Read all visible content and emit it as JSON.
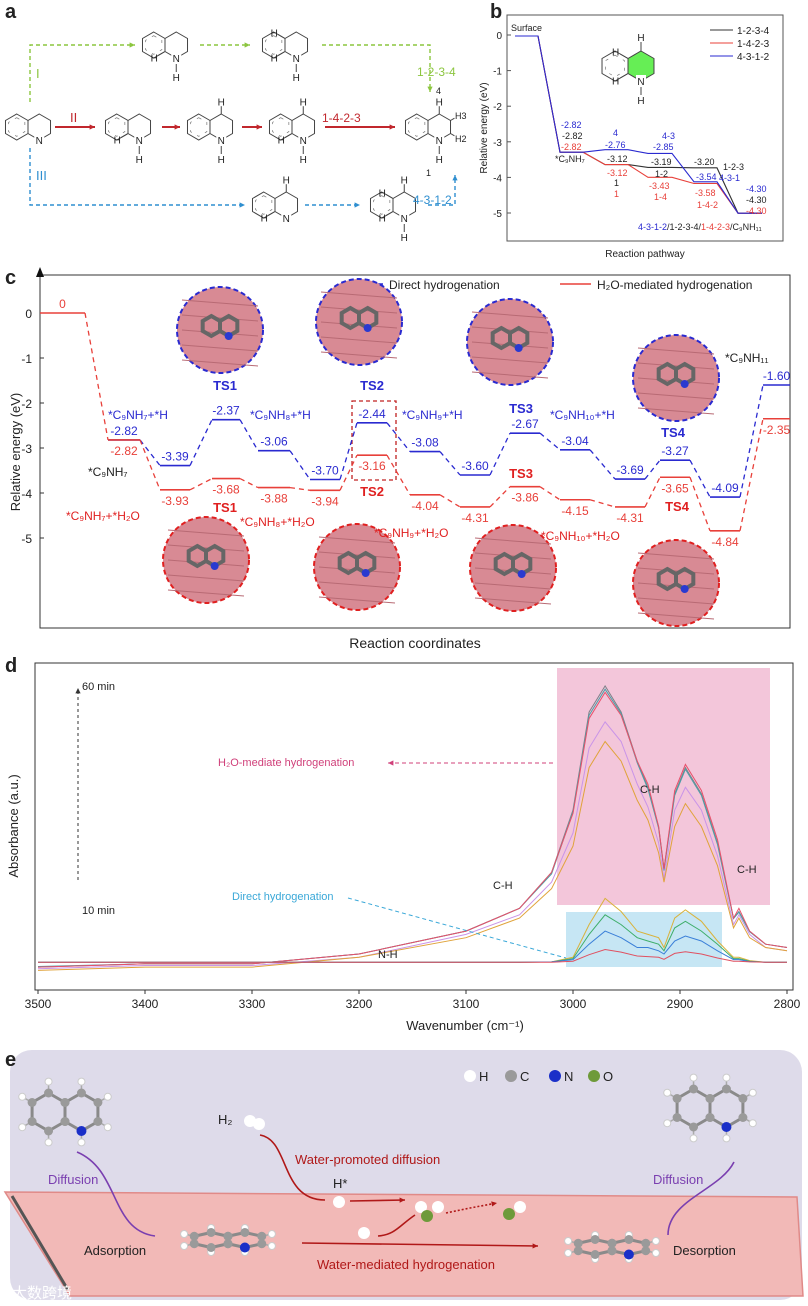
{
  "panels": {
    "a": "a",
    "b": "b",
    "c": "c",
    "d": "d",
    "e": "e"
  },
  "panel_a": {
    "route_labels": [
      {
        "text": "I",
        "color": "#8cc63f"
      },
      {
        "text": "II",
        "color": "#c1272d"
      },
      {
        "text": "III",
        "color": "#2f8fd0"
      }
    ],
    "sequence_labels": [
      {
        "text": "1-2-3-4",
        "color": "#8cc63f"
      },
      {
        "text": "1-4-2-3",
        "color": "#c1272d"
      },
      {
        "text": "4-3-1-2",
        "color": "#2f8fd0"
      }
    ],
    "atom_N": "N",
    "atom_H": "H",
    "product_labels": [
      "4",
      "H3",
      "H2",
      "1"
    ]
  },
  "chart_data": [
    {
      "type": "line",
      "panel": "b",
      "xlabel": "Reaction pathway",
      "ylabel": "Relative energy (eV)",
      "ylim": [
        -5,
        0.5
      ],
      "yticks": [
        "0",
        "-1",
        "-2",
        "-3",
        "-4",
        "-5"
      ],
      "legend_position": "top-right",
      "series": [
        {
          "name": "1-2-3-4",
          "color": "#333333",
          "values": [
            0,
            -2.82,
            -3.12,
            -3.19,
            -3.2,
            -4.3
          ]
        },
        {
          "name": "1-4-2-3",
          "color": "#e8403a",
          "values": [
            0,
            -2.82,
            -3.12,
            -3.43,
            -3.58,
            -4.3
          ]
        },
        {
          "name": "4-3-1-2",
          "color": "#2a2ad0",
          "values": [
            0,
            -2.82,
            -2.76,
            -2.85,
            -3.54,
            -4.3
          ]
        }
      ],
      "annotations": [
        {
          "text": "Surface",
          "color": "#222222"
        },
        {
          "text": "*C₉NH₇",
          "color": "#222222"
        },
        {
          "text": "-2.82",
          "color": "#2a2ad0"
        },
        {
          "text": "-2.82",
          "color": "#222222"
        },
        {
          "text": "-2.82",
          "color": "#e8403a"
        },
        {
          "text": "4",
          "color": "#2a2ad0"
        },
        {
          "text": "-2.76",
          "color": "#2a2ad0"
        },
        {
          "text": "4-3",
          "color": "#2a2ad0"
        },
        {
          "text": "-2.85",
          "color": "#2a2ad0"
        },
        {
          "text": "-3.12",
          "color": "#222222"
        },
        {
          "text": "-3.12",
          "color": "#e8403a"
        },
        {
          "text": "1",
          "color": "#222222"
        },
        {
          "text": "1",
          "color": "#e8403a"
        },
        {
          "text": "-3.19",
          "color": "#222222"
        },
        {
          "text": "1-2",
          "color": "#222222"
        },
        {
          "text": "-3.43",
          "color": "#e8403a"
        },
        {
          "text": "1-4",
          "color": "#e8403a"
        },
        {
          "text": "-3.20",
          "color": "#222222"
        },
        {
          "text": "1-2-3",
          "color": "#222222"
        },
        {
          "text": "-3.54",
          "color": "#2a2ad0"
        },
        {
          "text": "4-3-1",
          "color": "#2a2ad0"
        },
        {
          "text": "-3.58",
          "color": "#e8403a"
        },
        {
          "text": "1-4-2",
          "color": "#e8403a"
        },
        {
          "text": "-4.30",
          "color": "#2a2ad0"
        },
        {
          "text": "-4.30",
          "color": "#222222"
        },
        {
          "text": "-4.30",
          "color": "#e8403a"
        }
      ],
      "final_label": [
        {
          "text": "4-3-1-2",
          "color": "#2a2ad0"
        },
        {
          "text": "/1-2-3-4/",
          "color": "#222222"
        },
        {
          "text": "1-4-2-3",
          "color": "#e8403a"
        },
        {
          "text": "/C₉NH₁₁",
          "color": "#222222"
        }
      ],
      "structure_labels": [
        "4",
        "H",
        "H3",
        "H2",
        "N",
        "H",
        "1"
      ]
    },
    {
      "type": "line",
      "panel": "c",
      "xlabel": "Reaction coordinates",
      "ylabel": "Relative energy (eV)",
      "ylim": [
        -6.5,
        0.8
      ],
      "yticks": [
        "0",
        "-1",
        "-2",
        "-3",
        "-4",
        "-5"
      ],
      "legend_position": "top-right",
      "series": [
        {
          "name": "Direct hydrogenation",
          "color": "#2a2ad0",
          "values": [
            -2.82,
            -3.39,
            -2.37,
            -3.06,
            -3.7,
            -2.44,
            -3.08,
            -3.6,
            -2.67,
            -3.04,
            -3.69,
            -3.27,
            -4.09,
            -1.6
          ]
        },
        {
          "name": "H₂O-mediated hydrogenation",
          "color": "#e8403a",
          "values": [
            0,
            -2.82,
            -3.93,
            -3.68,
            -3.88,
            -3.94,
            -3.16,
            -4.04,
            -4.31,
            -3.86,
            -4.15,
            -4.31,
            -3.65,
            -4.84,
            -2.35
          ]
        }
      ],
      "value_labels_direct": [
        "-2.82",
        "-3.39",
        "-2.37",
        "-3.06",
        "-3.70",
        "-2.44",
        "-3.08",
        "-3.60",
        "-2.67",
        "-3.04",
        "-3.69",
        "-3.27",
        "-4.09",
        "-1.60"
      ],
      "value_labels_water": [
        "0",
        "-2.82",
        "-3.93",
        "-3.68",
        "-3.88",
        "-3.94",
        "-3.16",
        "-4.04",
        "-4.31",
        "-3.86",
        "-4.15",
        "-4.31",
        "-3.65",
        "-4.84",
        "-2.35"
      ],
      "ts_labels": [
        "TS1",
        "TS2",
        "TS3",
        "TS4"
      ],
      "states_direct": [
        "*C₉NH₇+*H",
        "*C₉NH₈+*H",
        "*C₉NH₉+*H",
        "*C₉NH₁₀+*H",
        "*C₉NH₁₁"
      ],
      "states_water": [
        "*C₉NH₇+*H₂O",
        "*C₉NH₈+*H₂O",
        "*C₉NH₉+*H₂O",
        "*C₉NH₁₀+*H₂O"
      ],
      "start_state": "*C₉NH₇"
    },
    {
      "type": "line",
      "panel": "d",
      "xlabel": "Wavenumber (cm⁻¹)",
      "ylabel": "Absorbance (a.u.)",
      "xlim": [
        3500,
        2800
      ],
      "xticks": [
        "3500",
        "3400",
        "3300",
        "3200",
        "3100",
        "3000",
        "2900",
        "2800"
      ],
      "x": [
        3500,
        3400,
        3300,
        3200,
        3100,
        3050,
        3020,
        3000,
        2985,
        2970,
        2955,
        2940,
        2930,
        2920,
        2915,
        2905,
        2895,
        2880,
        2865,
        2850,
        2845,
        2835,
        2820,
        2800
      ],
      "series": [
        {
          "group": "H2O-mediated",
          "color": "#7b7f86",
          "values": [
            0.07,
            0.08,
            0.08,
            0.11,
            0.18,
            0.25,
            0.36,
            0.55,
            0.85,
            0.93,
            0.85,
            0.7,
            0.62,
            0.5,
            0.37,
            0.6,
            0.68,
            0.6,
            0.45,
            0.22,
            0.24,
            0.18,
            0.14,
            0.13
          ]
        },
        {
          "group": "H2O-mediated",
          "color": "#4aa0a8",
          "values": [
            0.072,
            0.08,
            0.08,
            0.11,
            0.18,
            0.25,
            0.355,
            0.545,
            0.84,
            0.92,
            0.845,
            0.695,
            0.615,
            0.495,
            0.365,
            0.595,
            0.675,
            0.595,
            0.445,
            0.218,
            0.238,
            0.178,
            0.14,
            0.13
          ]
        },
        {
          "group": "H2O-mediated",
          "color": "#e8506a",
          "values": [
            0.07,
            0.08,
            0.08,
            0.11,
            0.18,
            0.25,
            0.36,
            0.54,
            0.83,
            0.91,
            0.84,
            0.7,
            0.63,
            0.5,
            0.37,
            0.61,
            0.69,
            0.61,
            0.46,
            0.22,
            0.25,
            0.18,
            0.14,
            0.13
          ]
        },
        {
          "group": "H2O-mediated",
          "color": "#c994e8",
          "values": [
            0.065,
            0.075,
            0.075,
            0.1,
            0.17,
            0.23,
            0.33,
            0.48,
            0.74,
            0.82,
            0.76,
            0.63,
            0.56,
            0.45,
            0.34,
            0.55,
            0.62,
            0.55,
            0.41,
            0.2,
            0.23,
            0.17,
            0.13,
            0.12
          ]
        },
        {
          "group": "H2O-mediated",
          "color": "#e0a33a",
          "values": [
            0.06,
            0.07,
            0.07,
            0.1,
            0.16,
            0.22,
            0.31,
            0.44,
            0.68,
            0.76,
            0.7,
            0.58,
            0.52,
            0.42,
            0.33,
            0.5,
            0.57,
            0.5,
            0.38,
            0.19,
            0.22,
            0.16,
            0.13,
            0.12
          ]
        },
        {
          "group": "Direct",
          "color": "#d9b23a",
          "values": [
            0.085,
            0.085,
            0.085,
            0.085,
            0.085,
            0.085,
            0.086,
            0.1,
            0.2,
            0.28,
            0.24,
            0.18,
            0.17,
            0.16,
            0.13,
            0.22,
            0.245,
            0.21,
            0.15,
            0.1,
            0.1,
            0.09,
            0.085,
            0.085
          ]
        },
        {
          "group": "Direct",
          "color": "#3fae6a",
          "values": [
            0.085,
            0.085,
            0.085,
            0.085,
            0.085,
            0.085,
            0.086,
            0.096,
            0.17,
            0.23,
            0.2,
            0.16,
            0.15,
            0.14,
            0.12,
            0.19,
            0.21,
            0.18,
            0.14,
            0.096,
            0.096,
            0.088,
            0.085,
            0.085
          ]
        },
        {
          "group": "Direct",
          "color": "#3a7fd8",
          "values": [
            0.085,
            0.085,
            0.085,
            0.085,
            0.085,
            0.085,
            0.086,
            0.093,
            0.14,
            0.18,
            0.16,
            0.13,
            0.13,
            0.12,
            0.11,
            0.15,
            0.165,
            0.15,
            0.12,
            0.093,
            0.093,
            0.087,
            0.085,
            0.085
          ]
        },
        {
          "group": "Direct",
          "color": "#e05060",
          "values": [
            0.085,
            0.085,
            0.085,
            0.085,
            0.085,
            0.085,
            0.085,
            0.088,
            0.108,
            0.124,
            0.116,
            0.104,
            0.102,
            0.1,
            0.094,
            0.112,
            0.117,
            0.11,
            0.098,
            0.088,
            0.088,
            0.086,
            0.085,
            0.085
          ]
        }
      ],
      "annotations": {
        "time_top": "60 min",
        "time_bottom": "10 min",
        "water_label": "H₂O-mediate hydrogenation",
        "direct_label": "Direct hydrogenation",
        "peak_labels": [
          "C-H",
          "C-H",
          "C-H",
          "N-H"
        ]
      },
      "colors": {
        "water_region": "#f3c6da",
        "direct_region": "#c6e6f4",
        "water_text": "#d0407a",
        "direct_text": "#3aa8d8"
      }
    }
  ],
  "panel_e": {
    "legend": [
      "H",
      "C",
      "N",
      "O"
    ],
    "h2_label": "H₂",
    "h_star_label": "H*",
    "water_promoted_diffusion": "Water-promoted diffusion",
    "water_mediated_hydrogenation": "Water-mediated hydrogenation",
    "diffusion_left": "Diffusion",
    "diffusion_right": "Diffusion",
    "adsorption": "Adsorption",
    "desorption": "Desorption",
    "watermark": "大数跨境",
    "colors": {
      "background": "#dedbea",
      "plane": "#f2b9b7",
      "accent_red": "#b01818",
      "accent_purple": "#7a3fb0",
      "H": "#ffffff",
      "C": "#9a9a9a",
      "N": "#1a2fc8",
      "O": "#6e9a3a"
    }
  }
}
